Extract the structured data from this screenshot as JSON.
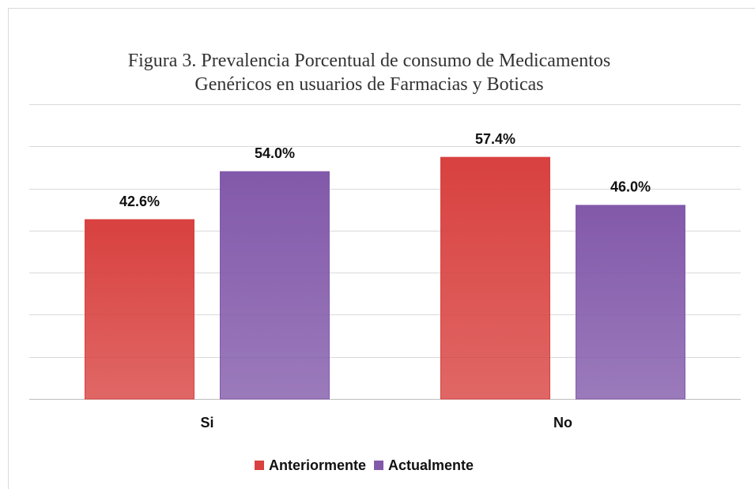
{
  "chart_data": {
    "type": "bar",
    "title": "Figura 3. Prevalencia Porcentual de consumo de Medicamentos Genéricos en usuarios de Farmacias y Boticas",
    "categories": [
      "Si",
      "No"
    ],
    "series": [
      {
        "name": "Anteriormente",
        "color": "#d8413f",
        "values": [
          42.6,
          57.4
        ],
        "value_labels": [
          "42.6%",
          "57.4%"
        ]
      },
      {
        "name": "Actualmente",
        "color": "#8259aa",
        "values": [
          54.0,
          46.0
        ],
        "value_labels": [
          "54.0%",
          "46.0%"
        ]
      }
    ],
    "ylim": [
      0,
      70
    ],
    "yticks": [
      0,
      10,
      20,
      30,
      40,
      50,
      60,
      70
    ],
    "grid": true,
    "legend": "bottom"
  }
}
